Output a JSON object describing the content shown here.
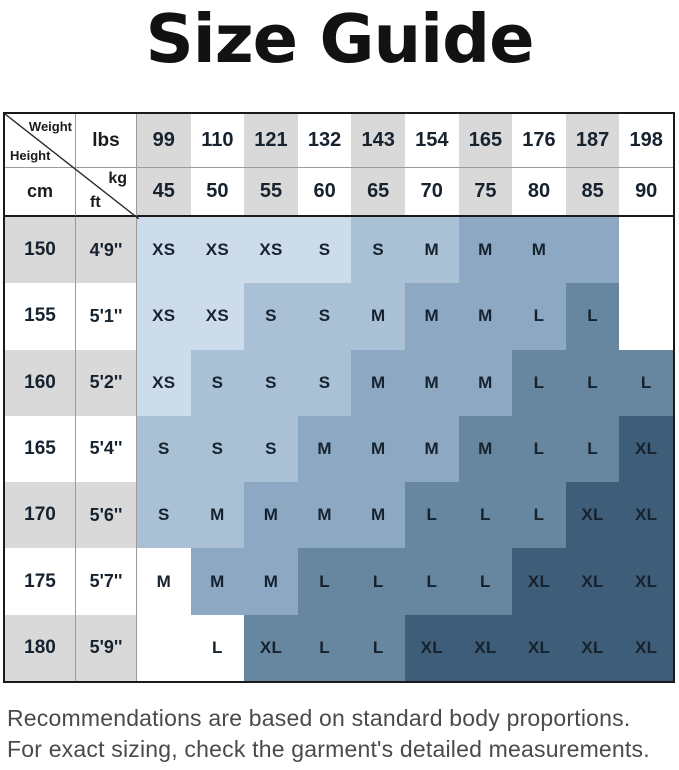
{
  "title": "Size Guide",
  "table": {
    "corner": {
      "weight": "Weight",
      "height": "Height",
      "lbs": "lbs",
      "cm": "cm",
      "kg": "kg",
      "ft": "ft"
    },
    "weights_lbs": [
      "99",
      "110",
      "121",
      "132",
      "143",
      "154",
      "165",
      "176",
      "187",
      "198"
    ],
    "weights_kg": [
      "45",
      "50",
      "55",
      "60",
      "65",
      "70",
      "75",
      "80",
      "85",
      "90"
    ],
    "rows": [
      {
        "cm": "150",
        "ft": "4'9''",
        "cells": [
          {
            "label": "XS",
            "shade": "A"
          },
          {
            "label": "XS",
            "shade": "A"
          },
          {
            "label": "XS",
            "shade": "A"
          },
          {
            "label": "S",
            "shade": "A"
          },
          {
            "label": "S",
            "shade": "B"
          },
          {
            "label": "M",
            "shade": "B"
          },
          {
            "label": "M",
            "shade": "C"
          },
          {
            "label": "M",
            "shade": "C"
          },
          {
            "label": "",
            "shade": "C"
          },
          {
            "label": "",
            "shade": "W"
          }
        ]
      },
      {
        "cm": "155",
        "ft": "5'1''",
        "cells": [
          {
            "label": "XS",
            "shade": "A"
          },
          {
            "label": "XS",
            "shade": "A"
          },
          {
            "label": "S",
            "shade": "B"
          },
          {
            "label": "S",
            "shade": "B"
          },
          {
            "label": "M",
            "shade": "B"
          },
          {
            "label": "M",
            "shade": "C"
          },
          {
            "label": "M",
            "shade": "C"
          },
          {
            "label": "L",
            "shade": "C"
          },
          {
            "label": "L",
            "shade": "D"
          },
          {
            "label": "",
            "shade": "W"
          }
        ]
      },
      {
        "cm": "160",
        "ft": "5'2''",
        "cells": [
          {
            "label": "XS",
            "shade": "A"
          },
          {
            "label": "S",
            "shade": "B"
          },
          {
            "label": "S",
            "shade": "B"
          },
          {
            "label": "S",
            "shade": "B"
          },
          {
            "label": "M",
            "shade": "C"
          },
          {
            "label": "M",
            "shade": "C"
          },
          {
            "label": "M",
            "shade": "C"
          },
          {
            "label": "L",
            "shade": "D"
          },
          {
            "label": "L",
            "shade": "D"
          },
          {
            "label": "L",
            "shade": "D"
          }
        ]
      },
      {
        "cm": "165",
        "ft": "5'4''",
        "cells": [
          {
            "label": "S",
            "shade": "B"
          },
          {
            "label": "S",
            "shade": "B"
          },
          {
            "label": "S",
            "shade": "B"
          },
          {
            "label": "M",
            "shade": "C"
          },
          {
            "label": "M",
            "shade": "C"
          },
          {
            "label": "M",
            "shade": "C"
          },
          {
            "label": "M",
            "shade": "D"
          },
          {
            "label": "L",
            "shade": "D"
          },
          {
            "label": "L",
            "shade": "D"
          },
          {
            "label": "XL",
            "shade": "E"
          }
        ]
      },
      {
        "cm": "170",
        "ft": "5'6''",
        "cells": [
          {
            "label": "S",
            "shade": "B"
          },
          {
            "label": "M",
            "shade": "B"
          },
          {
            "label": "M",
            "shade": "C"
          },
          {
            "label": "M",
            "shade": "C"
          },
          {
            "label": "M",
            "shade": "C"
          },
          {
            "label": "L",
            "shade": "D"
          },
          {
            "label": "L",
            "shade": "D"
          },
          {
            "label": "L",
            "shade": "D"
          },
          {
            "label": "XL",
            "shade": "E"
          },
          {
            "label": "XL",
            "shade": "E"
          }
        ]
      },
      {
        "cm": "175",
        "ft": "5'7''",
        "cells": [
          {
            "label": "M",
            "shade": "W"
          },
          {
            "label": "M",
            "shade": "C"
          },
          {
            "label": "M",
            "shade": "C"
          },
          {
            "label": "L",
            "shade": "D"
          },
          {
            "label": "L",
            "shade": "D"
          },
          {
            "label": "L",
            "shade": "D"
          },
          {
            "label": "L",
            "shade": "D"
          },
          {
            "label": "XL",
            "shade": "E"
          },
          {
            "label": "XL",
            "shade": "E"
          },
          {
            "label": "XL",
            "shade": "E"
          }
        ]
      },
      {
        "cm": "180",
        "ft": "5'9''",
        "cells": [
          {
            "label": "",
            "shade": "W"
          },
          {
            "label": "L",
            "shade": "W"
          },
          {
            "label": "XL",
            "shade": "D"
          },
          {
            "label": "L",
            "shade": "D"
          },
          {
            "label": "L",
            "shade": "D"
          },
          {
            "label": "XL",
            "shade": "E"
          },
          {
            "label": "XL",
            "shade": "E"
          },
          {
            "label": "XL",
            "shade": "E"
          },
          {
            "label": "XL",
            "shade": "E"
          },
          {
            "label": "XL",
            "shade": "E"
          }
        ]
      }
    ]
  },
  "colors": {
    "shade_A": "#cddcea",
    "shade_B": "#a9c0d5",
    "shade_C": "#8ca8c2",
    "shade_D": "#67869f",
    "shade_E": "#3e5d78",
    "white": "#ffffff",
    "header_alt_gray": "#d9d9d9",
    "cell_text": "#16222e",
    "grid_line": "#9b9b9b",
    "table_border": "#1a1a1a",
    "title_color": "#121212",
    "footer_text": "#4a4a4a"
  },
  "footer": {
    "lines": [
      "Recommendations are based on standard body proportions.",
      "For exact sizing, check the garment's detailed measurements."
    ]
  },
  "chart_data": {
    "type": "table",
    "title": "Size Guide",
    "col_header_lbs": [
      99,
      110,
      121,
      132,
      143,
      154,
      165,
      176,
      187,
      198
    ],
    "col_header_kg": [
      45,
      50,
      55,
      60,
      65,
      70,
      75,
      80,
      85,
      90
    ],
    "row_header_cm": [
      150,
      155,
      160,
      165,
      170,
      175,
      180
    ],
    "row_header_ft": [
      "4'9''",
      "5'1''",
      "5'2''",
      "5'4''",
      "5'6''",
      "5'7''",
      "5'9''"
    ],
    "sizes": [
      [
        "XS",
        "XS",
        "XS",
        "S",
        "S",
        "M",
        "M",
        "M",
        "",
        ""
      ],
      [
        "XS",
        "XS",
        "S",
        "S",
        "M",
        "M",
        "M",
        "L",
        "L",
        ""
      ],
      [
        "XS",
        "S",
        "S",
        "S",
        "M",
        "M",
        "M",
        "L",
        "L",
        "L"
      ],
      [
        "S",
        "S",
        "S",
        "M",
        "M",
        "M",
        "M",
        "L",
        "L",
        "XL"
      ],
      [
        "S",
        "M",
        "M",
        "M",
        "M",
        "L",
        "L",
        "L",
        "XL",
        "XL"
      ],
      [
        "M",
        "M",
        "M",
        "L",
        "L",
        "L",
        "L",
        "XL",
        "XL",
        "XL"
      ],
      [
        "",
        "L",
        "XL",
        "L",
        "L",
        "XL",
        "XL",
        "XL",
        "XL",
        "XL"
      ]
    ],
    "legend_shades": [
      "XS lightest blue",
      "S light blue",
      "M medium blue",
      "L slate blue",
      "XL dark blue"
    ]
  }
}
